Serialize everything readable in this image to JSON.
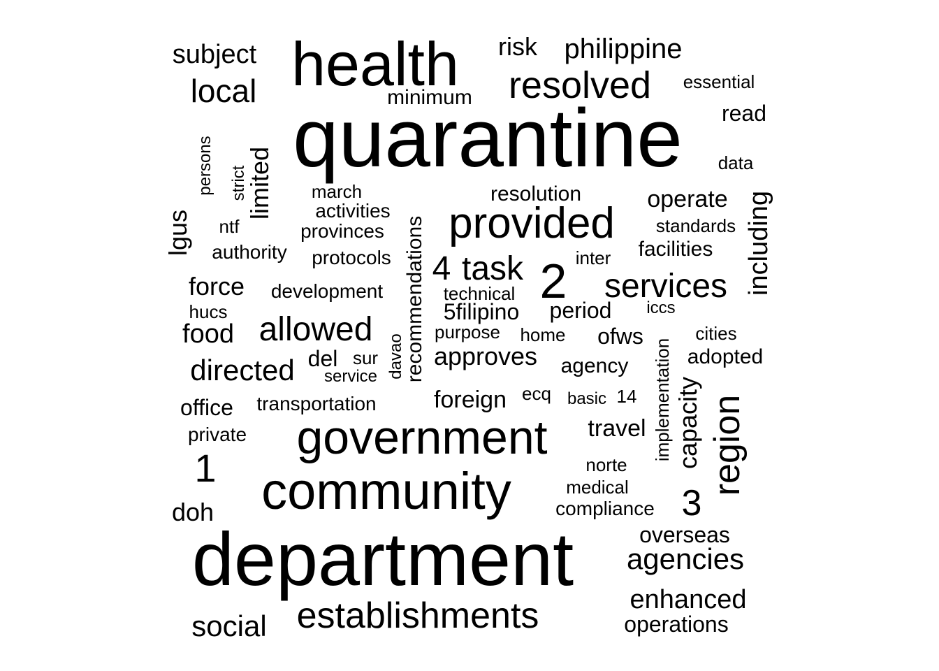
{
  "text_color": "#000000",
  "background": "#ffffff",
  "words": [
    {
      "text": "quarantine"
    },
    {
      "text": "department"
    },
    {
      "text": "health"
    },
    {
      "text": "community"
    },
    {
      "text": "government"
    },
    {
      "text": "provided"
    },
    {
      "text": "establishments"
    },
    {
      "text": "resolved"
    },
    {
      "text": "region",
      "orientation": "vertical"
    },
    {
      "text": "services"
    },
    {
      "text": "allowed"
    },
    {
      "text": "2"
    },
    {
      "text": "task"
    },
    {
      "text": "agencies"
    },
    {
      "text": "enhanced"
    },
    {
      "text": "local"
    },
    {
      "text": "directed"
    },
    {
      "text": "social"
    },
    {
      "text": "philippine"
    },
    {
      "text": "subject"
    },
    {
      "text": "1"
    },
    {
      "text": "including",
      "orientation": "vertical"
    },
    {
      "text": "4"
    },
    {
      "text": "3"
    },
    {
      "text": "recommendations",
      "orientation": "vertical"
    },
    {
      "text": "risk"
    },
    {
      "text": "food"
    },
    {
      "text": "operate"
    },
    {
      "text": "approves"
    },
    {
      "text": "doh"
    },
    {
      "text": "limited",
      "orientation": "vertical"
    },
    {
      "text": "lgus",
      "orientation": "vertical"
    },
    {
      "text": "capacity",
      "orientation": "vertical"
    },
    {
      "text": "force"
    },
    {
      "text": "operations"
    },
    {
      "text": "read"
    },
    {
      "text": "foreign"
    },
    {
      "text": "travel"
    },
    {
      "text": "overseas"
    },
    {
      "text": "period"
    },
    {
      "text": "5filipino"
    },
    {
      "text": "del"
    },
    {
      "text": "ofws"
    },
    {
      "text": "resolution"
    },
    {
      "text": "office"
    },
    {
      "text": "agency"
    },
    {
      "text": "adopted"
    },
    {
      "text": "minimum"
    },
    {
      "text": "facilities"
    },
    {
      "text": "activities"
    },
    {
      "text": "development"
    },
    {
      "text": "protocols"
    },
    {
      "text": "transportation"
    },
    {
      "text": "provinces"
    },
    {
      "text": "authority"
    },
    {
      "text": "compliance"
    },
    {
      "text": "essential"
    },
    {
      "text": "standards"
    },
    {
      "text": "purpose"
    },
    {
      "text": "home"
    },
    {
      "text": "norte"
    },
    {
      "text": "medical"
    },
    {
      "text": "private"
    },
    {
      "text": "march"
    },
    {
      "text": "technical"
    },
    {
      "text": "data"
    },
    {
      "text": "hucs"
    },
    {
      "text": "implementation",
      "orientation": "vertical"
    },
    {
      "text": "persons",
      "orientation": "vertical"
    },
    {
      "text": "ntf"
    },
    {
      "text": "inter"
    },
    {
      "text": "cities"
    },
    {
      "text": "service"
    },
    {
      "text": "sur"
    },
    {
      "text": "davao",
      "orientation": "vertical"
    },
    {
      "text": "strict",
      "orientation": "vertical"
    },
    {
      "text": "ecq"
    },
    {
      "text": "basic"
    },
    {
      "text": "14"
    },
    {
      "text": "iccs"
    }
  ]
}
